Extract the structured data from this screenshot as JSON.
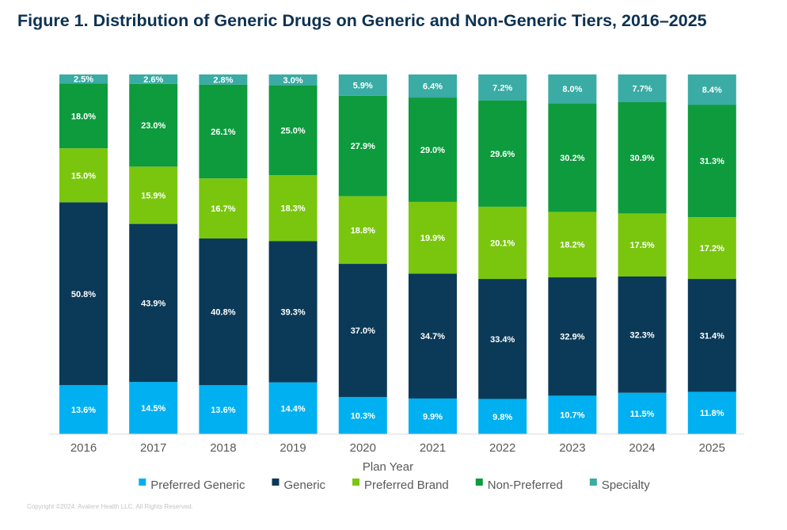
{
  "title": "Figure 1. Distribution of Generic Drugs on Generic and Non-Generic Tiers, 2016–2025",
  "copyright": "Copyright ©2024. Avalere Health LLC. All Rights Reserved.",
  "chart_data": {
    "type": "bar",
    "stacked": true,
    "percent_stacked": true,
    "categories": [
      "2016",
      "2017",
      "2018",
      "2019",
      "2020",
      "2021",
      "2022",
      "2023",
      "2024",
      "2025"
    ],
    "xlabel": "Plan Year",
    "ylabel": "",
    "ylim": [
      0,
      100
    ],
    "grid": false,
    "legend_position": "bottom",
    "series": [
      {
        "name": "Preferred Generic",
        "color": "#00b0f0",
        "values": [
          13.6,
          14.5,
          13.6,
          14.4,
          10.3,
          9.9,
          9.8,
          10.7,
          11.5,
          11.8
        ],
        "labels": [
          "13.6%",
          "14.5%",
          "13.6%",
          "14.4%",
          "10.3%",
          "9.9%",
          "9.8%",
          "10.7%",
          "11.5%",
          "11.8%"
        ]
      },
      {
        "name": "Generic",
        "color": "#0b3a58",
        "values": [
          50.8,
          43.9,
          40.8,
          39.3,
          37.0,
          34.7,
          33.4,
          32.9,
          32.3,
          31.4
        ],
        "labels": [
          "50.8%",
          "43.9%",
          "40.8%",
          "39.3%",
          "37.0%",
          "34.7%",
          "33.4%",
          "32.9%",
          "32.3%",
          "31.4%"
        ]
      },
      {
        "name": "Preferred Brand",
        "color": "#7ac60f",
        "values": [
          15.0,
          15.9,
          16.7,
          18.3,
          18.8,
          19.9,
          20.1,
          18.2,
          17.5,
          17.2
        ],
        "labels": [
          "15.0%",
          "15.9%",
          "16.7%",
          "18.3%",
          "18.8%",
          "19.9%",
          "20.1%",
          "18.2%",
          "17.5%",
          "17.2%"
        ]
      },
      {
        "name": "Non-Preferred",
        "color": "#0d9b3e",
        "values": [
          18.0,
          23.0,
          26.1,
          25.0,
          27.9,
          29.0,
          29.6,
          30.2,
          30.9,
          31.3
        ],
        "labels": [
          "18.0%",
          "23.0%",
          "26.1%",
          "25.0%",
          "27.9%",
          "29.0%",
          "29.6%",
          "30.2%",
          "30.9%",
          "31.3%"
        ]
      },
      {
        "name": "Specialty",
        "color": "#3aaba5",
        "values": [
          2.5,
          2.6,
          2.8,
          3.0,
          5.9,
          6.4,
          7.2,
          8.0,
          7.7,
          8.4
        ],
        "labels": [
          "2.5%",
          "2.6%",
          "2.8%",
          "3.0%",
          "5.9%",
          "6.4%",
          "7.2%",
          "8.0%",
          "7.7%",
          "8.4%"
        ]
      }
    ]
  }
}
